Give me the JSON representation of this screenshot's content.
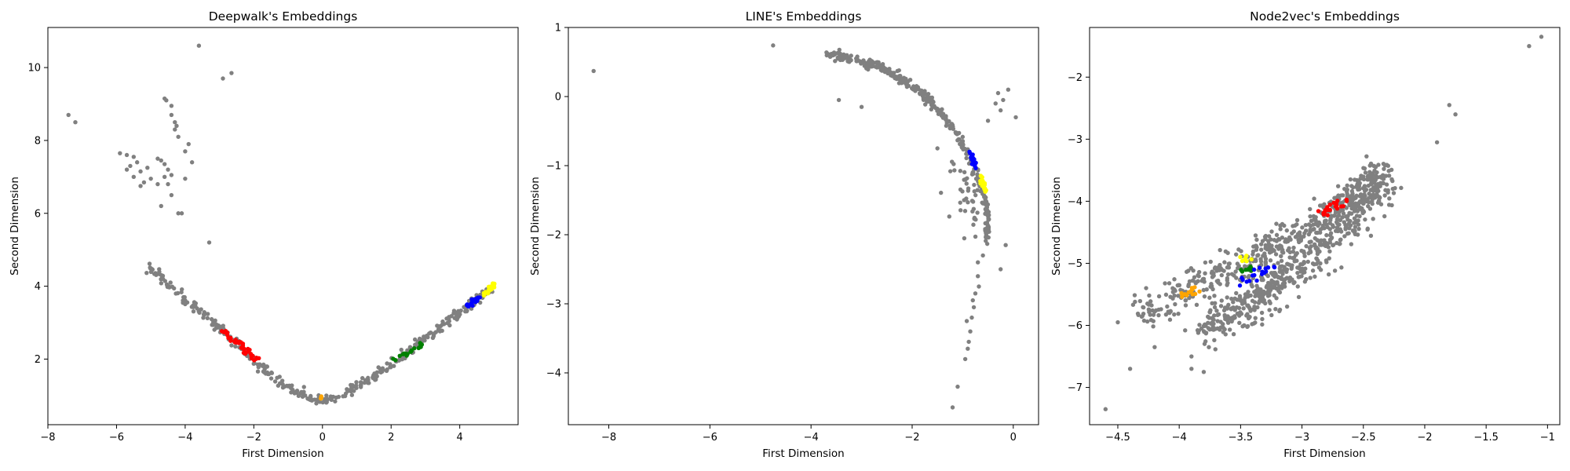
{
  "chart_data": [
    {
      "type": "scatter",
      "title": "Deepwalk's Embeddings",
      "xlabel": "First Dimension",
      "ylabel": "Second Dimension",
      "xlim": [
        -8,
        5.7
      ],
      "ylim": [
        0.2,
        11.1
      ],
      "xticks": [
        -8,
        -6,
        -4,
        -2,
        0,
        2,
        4
      ],
      "yticks": [
        2,
        4,
        6,
        8,
        10
      ],
      "outliers": [
        [
          -7.4,
          8.7
        ],
        [
          -7.2,
          8.5
        ],
        [
          -3.6,
          10.6
        ],
        [
          -2.9,
          9.7
        ],
        [
          -2.65,
          9.85
        ],
        [
          -3.3,
          5.2
        ],
        [
          -5.9,
          7.65
        ],
        [
          -5.7,
          7.6
        ],
        [
          -5.5,
          7.55
        ],
        [
          -5.4,
          7.4
        ],
        [
          -5.6,
          7.3
        ],
        [
          -5.3,
          7.15
        ],
        [
          -5.5,
          7.0
        ],
        [
          -5.2,
          6.85
        ],
        [
          -5.1,
          7.25
        ],
        [
          -5.0,
          6.95
        ],
        [
          -4.8,
          6.8
        ],
        [
          -5.3,
          6.75
        ],
        [
          -5.7,
          7.2
        ],
        [
          -4.8,
          7.5
        ],
        [
          -4.7,
          7.45
        ],
        [
          -4.6,
          7.35
        ],
        [
          -4.5,
          7.2
        ],
        [
          -4.4,
          7.05
        ],
        [
          -4.6,
          7.0
        ],
        [
          -4.5,
          6.8
        ],
        [
          -4.4,
          6.5
        ],
        [
          -4.2,
          6.0
        ],
        [
          -4.1,
          6.0
        ],
        [
          -4.7,
          6.2
        ],
        [
          -4.6,
          9.15
        ],
        [
          -4.55,
          9.1
        ],
        [
          -4.4,
          8.95
        ],
        [
          -4.4,
          8.7
        ],
        [
          -4.3,
          8.5
        ],
        [
          -4.25,
          8.4
        ],
        [
          -4.3,
          8.3
        ],
        [
          -4.2,
          8.1
        ],
        [
          -4.0,
          7.7
        ],
        [
          -4.0,
          6.95
        ],
        [
          -3.9,
          7.9
        ],
        [
          -3.8,
          7.4
        ]
      ],
      "curves": [
        {
          "name": "gray",
          "color": "#808080",
          "n": 380,
          "jitter": 0.07,
          "points": [
            [
              -5.1,
              4.55
            ],
            [
              -4.2,
              3.85
            ],
            [
              -3.0,
              2.85
            ],
            [
              -2.0,
              2.0
            ],
            [
              -1.2,
              1.35
            ],
            [
              -0.5,
              0.95
            ],
            [
              0.0,
              0.85
            ],
            [
              0.6,
              1.0
            ],
            [
              1.3,
              1.4
            ],
            [
              2.2,
              2.0
            ],
            [
              3.2,
              2.7
            ],
            [
              4.2,
              3.4
            ],
            [
              5.0,
              4.0
            ]
          ]
        },
        {
          "name": "red",
          "color": "#ff0000",
          "n": 40,
          "jitter": 0.06,
          "points": [
            [
              -2.9,
              2.75
            ],
            [
              -1.9,
              2.0
            ]
          ]
        },
        {
          "name": "green",
          "color": "#008000",
          "n": 22,
          "jitter": 0.05,
          "points": [
            [
              2.1,
              1.95
            ],
            [
              2.9,
              2.4
            ]
          ]
        },
        {
          "name": "blue",
          "color": "#0000ff",
          "n": 22,
          "jitter": 0.04,
          "points": [
            [
              4.2,
              3.45
            ],
            [
              4.55,
              3.7
            ]
          ]
        },
        {
          "name": "yellow",
          "color": "#ffff00",
          "n": 26,
          "jitter": 0.04,
          "points": [
            [
              4.7,
              3.75
            ],
            [
              5.0,
              4.05
            ]
          ]
        },
        {
          "name": "orange",
          "color": "#ffa500",
          "n": 3,
          "jitter": 0.02,
          "points": [
            [
              -0.1,
              0.92
            ],
            [
              0.0,
              0.96
            ]
          ]
        }
      ]
    },
    {
      "type": "scatter",
      "title": "LINE's Embeddings",
      "xlabel": "First Dimension",
      "ylabel": "Second Dimension",
      "xlim": [
        -8.8,
        0.5
      ],
      "ylim": [
        -4.75,
        1.0
      ],
      "xticks": [
        -8,
        -6,
        -4,
        -2,
        0
      ],
      "yticks": [
        -4,
        -3,
        -2,
        -1,
        0,
        1
      ],
      "outliers": [
        [
          -8.3,
          0.37
        ],
        [
          -4.75,
          0.74
        ],
        [
          -3.45,
          -0.05
        ],
        [
          -3.0,
          -0.15
        ],
        [
          -1.5,
          -0.75
        ],
        [
          -0.35,
          -0.1
        ],
        [
          -0.3,
          0.05
        ],
        [
          -0.2,
          -0.05
        ],
        [
          -0.1,
          0.1
        ],
        [
          0.05,
          -0.3
        ],
        [
          -0.25,
          -0.2
        ],
        [
          -0.5,
          -0.35
        ],
        [
          -0.15,
          -2.15
        ],
        [
          -0.25,
          -2.5
        ],
        [
          -0.6,
          -2.3
        ],
        [
          -0.7,
          -2.6
        ],
        [
          -0.75,
          -2.85
        ],
        [
          -0.78,
          -3.05
        ],
        [
          -0.82,
          -3.2
        ],
        [
          -0.85,
          -3.4
        ],
        [
          -0.88,
          -3.55
        ],
        [
          -0.9,
          -3.65
        ],
        [
          -0.95,
          -3.8
        ],
        [
          -1.1,
          -4.2
        ],
        [
          -1.2,
          -4.5
        ],
        [
          -0.7,
          -2.4
        ],
        [
          -0.68,
          -2.75
        ],
        [
          -0.8,
          -2.95
        ],
        [
          -0.92,
          -3.25
        ]
      ],
      "curves": [
        {
          "name": "gray",
          "color": "#808080",
          "n": 330,
          "jitter": 0.04,
          "points": [
            [
              -3.7,
              0.62
            ],
            [
              -3.0,
              0.52
            ],
            [
              -2.3,
              0.3
            ],
            [
              -1.8,
              0.05
            ],
            [
              -1.3,
              -0.35
            ],
            [
              -0.95,
              -0.75
            ],
            [
              -0.7,
              -1.15
            ],
            [
              -0.55,
              -1.5
            ],
            [
              -0.5,
              -1.8
            ],
            [
              -0.55,
              -2.1
            ]
          ]
        },
        {
          "name": "gray-spread",
          "color": "#808080",
          "n": 40,
          "jitter": 0.18,
          "points": [
            [
              -1.2,
              -1.05
            ],
            [
              -0.9,
              -1.4
            ],
            [
              -0.75,
              -1.8
            ]
          ]
        },
        {
          "name": "blue",
          "color": "#0000ff",
          "n": 20,
          "jitter": 0.03,
          "points": [
            [
              -0.85,
              -0.85
            ],
            [
              -0.75,
              -1.0
            ]
          ]
        },
        {
          "name": "yellow",
          "color": "#ffff00",
          "n": 20,
          "jitter": 0.03,
          "points": [
            [
              -0.65,
              -1.15
            ],
            [
              -0.55,
              -1.35
            ]
          ]
        }
      ]
    },
    {
      "type": "scatter",
      "title": "Node2vec's Embeddings",
      "xlabel": "First Dimension",
      "ylabel": "Second Dimension",
      "xlim": [
        -4.73,
        -0.9
      ],
      "ylim": [
        -7.6,
        -1.2
      ],
      "xticks": [
        -4.5,
        -4.0,
        -3.5,
        -3.0,
        -2.5,
        -2.0,
        -1.5,
        -1.0
      ],
      "yticks": [
        -7,
        -6,
        -5,
        -4,
        -3,
        -2
      ],
      "outliers": [
        [
          -4.6,
          -7.35
        ],
        [
          -4.4,
          -6.7
        ],
        [
          -4.2,
          -6.35
        ],
        [
          -3.9,
          -6.7
        ],
        [
          -3.8,
          -6.75
        ],
        [
          -3.9,
          -6.5
        ],
        [
          -4.5,
          -5.95
        ],
        [
          -4.3,
          -5.85
        ],
        [
          -1.05,
          -1.35
        ],
        [
          -1.15,
          -1.5
        ],
        [
          -1.8,
          -2.45
        ],
        [
          -1.75,
          -2.6
        ],
        [
          -1.9,
          -3.05
        ],
        [
          -2.4,
          -3.45
        ]
      ],
      "curves": [
        {
          "name": "gray-main",
          "color": "#808080",
          "n": 620,
          "jitter": 0.17,
          "points": [
            [
              -3.8,
              -6.1
            ],
            [
              -3.4,
              -5.6
            ],
            [
              -3.0,
              -5.0
            ],
            [
              -2.7,
              -4.45
            ],
            [
              -2.35,
              -3.55
            ]
          ]
        },
        {
          "name": "gray-upper",
          "color": "#808080",
          "n": 380,
          "jitter": 0.14,
          "points": [
            [
              -4.3,
              -5.85
            ],
            [
              -3.9,
              -5.4
            ],
            [
              -3.5,
              -5.0
            ],
            [
              -3.1,
              -4.55
            ],
            [
              -2.7,
              -4.1
            ],
            [
              -2.35,
              -3.6
            ]
          ]
        },
        {
          "name": "red",
          "color": "#ff0000",
          "n": 22,
          "jitter": 0.04,
          "points": [
            [
              -2.85,
              -4.2
            ],
            [
              -2.65,
              -4.0
            ]
          ]
        },
        {
          "name": "orange",
          "color": "#ffa500",
          "n": 14,
          "jitter": 0.03,
          "points": [
            [
              -4.0,
              -5.55
            ],
            [
              -3.85,
              -5.4
            ]
          ]
        },
        {
          "name": "green",
          "color": "#008000",
          "n": 8,
          "jitter": 0.03,
          "points": [
            [
              -3.55,
              -5.15
            ],
            [
              -3.4,
              -5.05
            ]
          ]
        },
        {
          "name": "yellow",
          "color": "#ffff00",
          "n": 8,
          "jitter": 0.03,
          "points": [
            [
              -3.5,
              -4.95
            ],
            [
              -3.4,
              -4.9
            ]
          ]
        },
        {
          "name": "blue",
          "color": "#0000ff",
          "n": 18,
          "jitter": 0.04,
          "points": [
            [
              -3.55,
              -5.35
            ],
            [
              -3.2,
              -5.0
            ]
          ]
        }
      ]
    }
  ]
}
